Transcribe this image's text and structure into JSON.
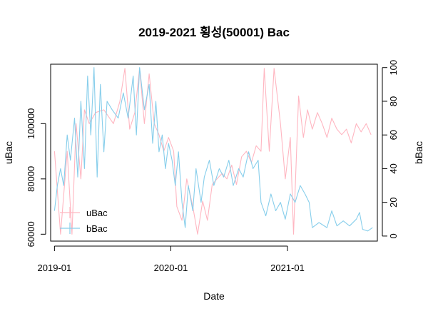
{
  "chart_data": {
    "type": "line",
    "title": "2019-2021 횡성(50001) Bac",
    "xlabel": "Date",
    "ylabel_left": "uBac",
    "ylabel_right": "bBac",
    "xlim": [
      "2018-12-20",
      "2021-10-10"
    ],
    "x_ticks": [
      "2019-01",
      "2020-01",
      "2021-01"
    ],
    "y_left": {
      "lim": [
        57500,
        121500
      ],
      "ticks": [
        60000,
        80000,
        100000
      ],
      "tick_labels": [
        "60000",
        "80000",
        "100000"
      ]
    },
    "y_right": {
      "lim": [
        -3,
        102
      ],
      "ticks": [
        0,
        20,
        40,
        60,
        80,
        100
      ],
      "tick_labels": [
        "0",
        "20",
        "40",
        "60",
        "80",
        "100"
      ]
    },
    "grid": false,
    "legend_position": "bottom-left",
    "legend": [
      "uBac",
      "bBac"
    ],
    "series": [
      {
        "name": "uBac",
        "axis": "left",
        "color": "#FFB6C1",
        "points": [
          [
            "2019-01-01",
            90000
          ],
          [
            "2019-01-20",
            60000
          ],
          [
            "2019-02-10",
            90000
          ],
          [
            "2019-02-25",
            60000
          ],
          [
            "2019-03-10",
            100000
          ],
          [
            "2019-03-25",
            80000
          ],
          [
            "2019-04-05",
            105000
          ],
          [
            "2019-04-20",
            100000
          ],
          [
            "2019-05-10",
            104000
          ],
          [
            "2019-06-05",
            105000
          ],
          [
            "2019-07-05",
            100000
          ],
          [
            "2019-07-25",
            108000
          ],
          [
            "2019-08-10",
            120000
          ],
          [
            "2019-08-25",
            98000
          ],
          [
            "2019-09-10",
            104000
          ],
          [
            "2019-09-25",
            120000
          ],
          [
            "2019-10-10",
            100000
          ],
          [
            "2019-10-25",
            118000
          ],
          [
            "2019-11-10",
            100000
          ],
          [
            "2019-11-25",
            96000
          ],
          [
            "2019-12-10",
            90000
          ],
          [
            "2019-12-25",
            95000
          ],
          [
            "2020-01-10",
            90000
          ],
          [
            "2020-01-20",
            70000
          ],
          [
            "2020-02-05",
            65000
          ],
          [
            "2020-02-20",
            80000
          ],
          [
            "2020-03-10",
            70000
          ],
          [
            "2020-03-25",
            60000
          ],
          [
            "2020-04-10",
            72000
          ],
          [
            "2020-04-25",
            65000
          ],
          [
            "2020-05-10",
            78000
          ],
          [
            "2020-05-25",
            80000
          ],
          [
            "2020-06-10",
            82000
          ],
          [
            "2020-06-25",
            80000
          ],
          [
            "2020-07-10",
            85000
          ],
          [
            "2020-07-25",
            78000
          ],
          [
            "2020-08-10",
            88000
          ],
          [
            "2020-08-25",
            90000
          ],
          [
            "2020-09-10",
            86000
          ],
          [
            "2020-09-25",
            92000
          ],
          [
            "2020-10-10",
            90000
          ],
          [
            "2020-10-20",
            120000
          ],
          [
            "2020-11-05",
            90000
          ],
          [
            "2020-11-20",
            120000
          ],
          [
            "2020-12-10",
            100000
          ],
          [
            "2020-12-25",
            80000
          ],
          [
            "2021-01-10",
            95000
          ],
          [
            "2021-01-20",
            60000
          ],
          [
            "2021-02-05",
            110000
          ],
          [
            "2021-02-20",
            95000
          ],
          [
            "2021-03-05",
            105000
          ],
          [
            "2021-03-20",
            98000
          ],
          [
            "2021-04-05",
            104000
          ],
          [
            "2021-04-20",
            100000
          ],
          [
            "2021-05-05",
            95000
          ],
          [
            "2021-05-20",
            102000
          ],
          [
            "2021-06-05",
            98000
          ],
          [
            "2021-06-20",
            96000
          ],
          [
            "2021-07-05",
            98000
          ],
          [
            "2021-07-20",
            93000
          ],
          [
            "2021-08-05",
            100000
          ],
          [
            "2021-08-20",
            97000
          ],
          [
            "2021-09-05",
            100000
          ],
          [
            "2021-09-20",
            96000
          ]
        ]
      },
      {
        "name": "bBac",
        "axis": "right",
        "color": "#87CEEB",
        "points": [
          [
            "2019-01-01",
            15
          ],
          [
            "2019-01-10",
            30
          ],
          [
            "2019-01-20",
            40
          ],
          [
            "2019-01-30",
            30
          ],
          [
            "2019-02-10",
            60
          ],
          [
            "2019-02-20",
            45
          ],
          [
            "2019-03-05",
            70
          ],
          [
            "2019-03-15",
            35
          ],
          [
            "2019-03-25",
            80
          ],
          [
            "2019-04-05",
            40
          ],
          [
            "2019-04-15",
            95
          ],
          [
            "2019-04-25",
            60
          ],
          [
            "2019-05-05",
            100
          ],
          [
            "2019-05-15",
            35
          ],
          [
            "2019-05-25",
            90
          ],
          [
            "2019-06-05",
            50
          ],
          [
            "2019-06-15",
            80
          ],
          [
            "2019-07-01",
            75
          ],
          [
            "2019-07-20",
            70
          ],
          [
            "2019-08-05",
            85
          ],
          [
            "2019-08-20",
            70
          ],
          [
            "2019-09-05",
            95
          ],
          [
            "2019-09-15",
            60
          ],
          [
            "2019-09-25",
            100
          ],
          [
            "2019-10-10",
            75
          ],
          [
            "2019-10-25",
            90
          ],
          [
            "2019-11-05",
            55
          ],
          [
            "2019-11-15",
            80
          ],
          [
            "2019-11-25",
            50
          ],
          [
            "2019-12-05",
            60
          ],
          [
            "2019-12-15",
            40
          ],
          [
            "2019-12-25",
            55
          ],
          [
            "2020-01-05",
            45
          ],
          [
            "2020-01-15",
            30
          ],
          [
            "2020-01-25",
            50
          ],
          [
            "2020-02-05",
            20
          ],
          [
            "2020-02-15",
            5
          ],
          [
            "2020-02-25",
            30
          ],
          [
            "2020-03-10",
            15
          ],
          [
            "2020-03-20",
            40
          ],
          [
            "2020-04-05",
            20
          ],
          [
            "2020-04-15",
            35
          ],
          [
            "2020-05-01",
            45
          ],
          [
            "2020-05-15",
            30
          ],
          [
            "2020-06-01",
            40
          ],
          [
            "2020-06-15",
            35
          ],
          [
            "2020-07-01",
            45
          ],
          [
            "2020-07-15",
            30
          ],
          [
            "2020-08-01",
            40
          ],
          [
            "2020-08-15",
            35
          ],
          [
            "2020-09-01",
            50
          ],
          [
            "2020-09-15",
            40
          ],
          [
            "2020-10-01",
            45
          ],
          [
            "2020-10-10",
            20
          ],
          [
            "2020-10-25",
            12
          ],
          [
            "2020-11-10",
            25
          ],
          [
            "2020-11-25",
            15
          ],
          [
            "2020-12-10",
            20
          ],
          [
            "2020-12-25",
            10
          ],
          [
            "2021-01-10",
            25
          ],
          [
            "2021-01-25",
            20
          ],
          [
            "2021-02-10",
            30
          ],
          [
            "2021-02-25",
            25
          ],
          [
            "2021-03-10",
            20
          ],
          [
            "2021-03-20",
            5
          ],
          [
            "2021-04-10",
            8
          ],
          [
            "2021-05-05",
            5
          ],
          [
            "2021-05-20",
            15
          ],
          [
            "2021-06-05",
            6
          ],
          [
            "2021-06-25",
            9
          ],
          [
            "2021-07-15",
            6
          ],
          [
            "2021-08-05",
            10
          ],
          [
            "2021-08-15",
            14
          ],
          [
            "2021-08-25",
            4
          ],
          [
            "2021-09-10",
            3
          ],
          [
            "2021-09-25",
            5
          ]
        ]
      }
    ]
  }
}
